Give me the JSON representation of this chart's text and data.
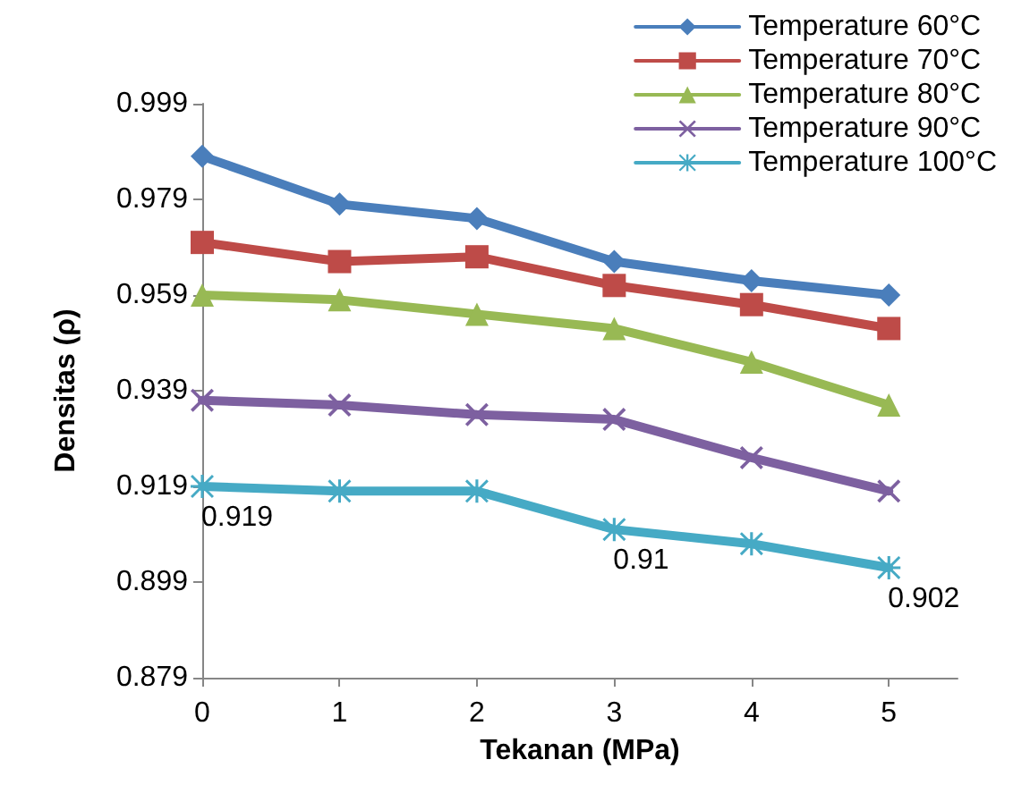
{
  "chart_data": {
    "type": "line",
    "xlabel": "Tekanan (MPa)",
    "ylabel": "Densitas (ρ)",
    "x": [
      0,
      1,
      2,
      3,
      4,
      5
    ],
    "xlim": [
      0,
      5.5
    ],
    "xticks": [
      0,
      1,
      2,
      3,
      4,
      5
    ],
    "ylim": [
      0.879,
      0.999
    ],
    "yticks": [
      0.879,
      0.899,
      0.919,
      0.939,
      0.959,
      0.979,
      0.999
    ],
    "grid": false,
    "legend": "top right",
    "line_style": "solid",
    "series": [
      {
        "name": "Temperature 60°C",
        "color": "#4a7ebb",
        "marker": "diamond",
        "values": [
          0.988,
          0.978,
          0.975,
          0.966,
          0.962,
          0.959
        ]
      },
      {
        "name": "Temperature 70°C",
        "color": "#be4b48",
        "marker": "square",
        "values": [
          0.97,
          0.966,
          0.967,
          0.961,
          0.957,
          0.952
        ]
      },
      {
        "name": "Temperature 80°C",
        "color": "#98b954",
        "marker": "triangle",
        "values": [
          0.959,
          0.958,
          0.955,
          0.952,
          0.945,
          0.936
        ]
      },
      {
        "name": "Temperature 90°C",
        "color": "#7d60a0",
        "marker": "cross",
        "values": [
          0.937,
          0.936,
          0.934,
          0.933,
          0.925,
          0.918
        ]
      },
      {
        "name": "Temperature 100°C",
        "color": "#46aac5",
        "marker": "star",
        "values": [
          0.919,
          0.918,
          0.918,
          0.91,
          0.907,
          0.902
        ],
        "value_labels": [
          "0.919",
          null,
          null,
          "0.91",
          null,
          "0.902"
        ]
      }
    ]
  }
}
